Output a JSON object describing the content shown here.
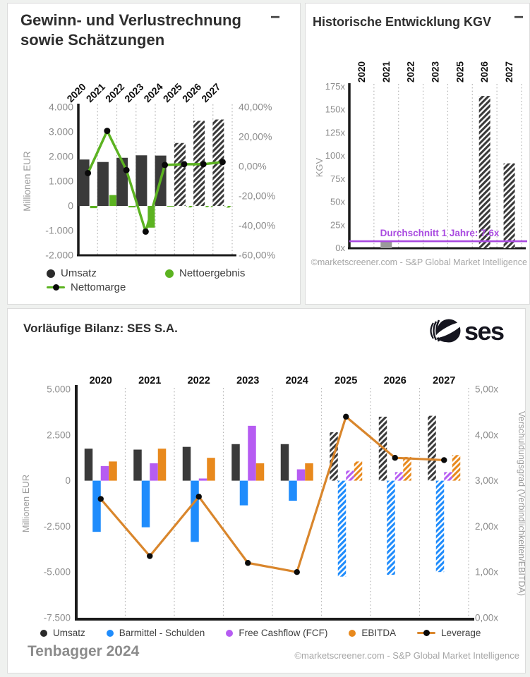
{
  "colors": {
    "umsatz": "#3a3a3a",
    "green": "#5cb321",
    "blue": "#1f8cfc",
    "purple": "#b65cf2",
    "orange": "#e8891d",
    "leverage_line": "#d9862c",
    "kgv_bar": "#9a9a9a",
    "avg_line": "#a94ae0",
    "axis": "#1a1a1a",
    "tick": "#8c8c8c",
    "grid": "#b5b5b5",
    "legend_dark": "#2b2b2b"
  },
  "cards": {
    "pnl": {
      "title_lines": [
        "Gewinn- und Verlustrechnung",
        "sowie Schätzungen"
      ],
      "collapse_icon": "−",
      "legend": [
        {
          "label": "Umsatz"
        },
        {
          "label": "Nettoergebnis"
        },
        {
          "label": "Nettomarge"
        }
      ]
    },
    "kgv": {
      "title": "Historische Entwicklung KGV",
      "collapse_icon": "−",
      "footer": "©marketscreener.com - S&P Global Market Intelligence"
    },
    "balance": {
      "title": "Vorläufige Bilanz: SES S.A.",
      "logo_text": "ses",
      "legend": [
        {
          "label": "Umsatz"
        },
        {
          "label": "Barmittel - Schulden"
        },
        {
          "label": "Free Cashflow (FCF)"
        },
        {
          "label": "EBITDA"
        },
        {
          "label": "Leverage"
        }
      ],
      "footer_left": "Tenbagger 2024",
      "footer_right": "©marketscreener.com - S&P Global Market Intelligence"
    }
  },
  "chart_data": [
    {
      "id": "pnl",
      "type": "bar+line",
      "title": "Gewinn- und Verlustrechnung sowie Schätzungen",
      "categories": [
        "2020",
        "2021",
        "2022",
        "2023",
        "2024",
        "2025",
        "2026",
        "2027"
      ],
      "estimated_categories": [
        "2025",
        "2026",
        "2027"
      ],
      "ylabel_left": "Millionen EUR",
      "yticks_left": [
        "4.000",
        "3.000",
        "2.000",
        "1.000",
        "0",
        "-1.000",
        "-2.000"
      ],
      "ylim_left": [
        -2000,
        4000
      ],
      "yticks_right": [
        "40,00%",
        "20,00%",
        "0,00%",
        "-20,00%",
        "-40,00%",
        "-60,00%"
      ],
      "ylim_right": [
        -60,
        40
      ],
      "series": [
        {
          "name": "Umsatz",
          "type": "bar",
          "axis": "left",
          "color_key": "umsatz",
          "values": [
            1880,
            1780,
            1950,
            2050,
            2040,
            2550,
            3450,
            3500
          ]
        },
        {
          "name": "Nettoergebnis",
          "type": "bar",
          "axis": "left",
          "color_key": "green",
          "values": [
            -90,
            440,
            -60,
            -880,
            -30,
            -60,
            -50,
            -70
          ]
        },
        {
          "name": "Nettomarge",
          "type": "line",
          "axis": "right",
          "unit": "%",
          "color_key": "green",
          "values": [
            -4.5,
            24,
            -2.5,
            -44,
            1,
            1.5,
            1.5,
            3
          ]
        }
      ]
    },
    {
      "id": "kgv",
      "type": "bar",
      "title": "Historische Entwicklung KGV",
      "categories": [
        "2020",
        "2021",
        "2022",
        "2023",
        "2025",
        "2026",
        "2027"
      ],
      "ylabel": "KGV",
      "yticks": [
        "175x",
        "150x",
        "125x",
        "100x",
        "75x",
        "50x",
        "25x",
        "0x"
      ],
      "ylim": [
        0,
        175
      ],
      "series": [
        {
          "name": "KGV",
          "values": [
            null,
            7,
            null,
            null,
            null,
            165,
            92
          ],
          "styles": [
            "none",
            "solid",
            "none",
            "none",
            "none",
            "hatched",
            "hatched"
          ]
        }
      ],
      "average_line": {
        "value": 7.6,
        "label": "Durchschnitt 1 Jahre: 7.6x"
      }
    },
    {
      "id": "balance",
      "type": "bar+line",
      "title": "Vorläufige Bilanz: SES S.A.",
      "categories": [
        "2020",
        "2021",
        "2022",
        "2023",
        "2024",
        "2025",
        "2026",
        "2027"
      ],
      "estimated_categories": [
        "2025",
        "2026",
        "2027"
      ],
      "ylabel_left": "Millionen EUR",
      "yticks_left": [
        "5.000",
        "2.500",
        "0",
        "-2.500",
        "-5.000",
        "-7.500"
      ],
      "ylim_left": [
        -7500,
        5000
      ],
      "ylabel_right": "Verschuldungsgrad (Verbindlichkeiten/EBITDA)",
      "yticks_right": [
        "5,00x",
        "4,00x",
        "3,00x",
        "2,00x",
        "1,00x",
        "0,00x"
      ],
      "ylim_right": [
        0,
        5
      ],
      "series": [
        {
          "name": "Umsatz",
          "type": "bar",
          "axis": "left",
          "color_key": "umsatz",
          "values": [
            1750,
            1700,
            1850,
            2000,
            2000,
            2650,
            3500,
            3550
          ]
        },
        {
          "name": "Barmittel - Schulden",
          "type": "bar",
          "axis": "left",
          "color_key": "blue",
          "values": [
            -2800,
            -2550,
            -3350,
            -1350,
            -1100,
            -5250,
            -5150,
            -5000
          ]
        },
        {
          "name": "Free Cashflow (FCF)",
          "type": "bar",
          "axis": "left",
          "color_key": "purple",
          "values": [
            800,
            950,
            120,
            3000,
            620,
            550,
            470,
            470
          ]
        },
        {
          "name": "EBITDA",
          "type": "bar",
          "axis": "left",
          "color_key": "orange",
          "values": [
            1050,
            1750,
            1250,
            950,
            950,
            1050,
            1300,
            1400
          ]
        },
        {
          "name": "Leverage",
          "type": "line",
          "axis": "right",
          "unit": "x",
          "color_key": "leverage_line",
          "values": [
            2.6,
            1.35,
            2.65,
            1.2,
            1.0,
            4.4,
            3.5,
            3.45
          ]
        }
      ]
    }
  ]
}
